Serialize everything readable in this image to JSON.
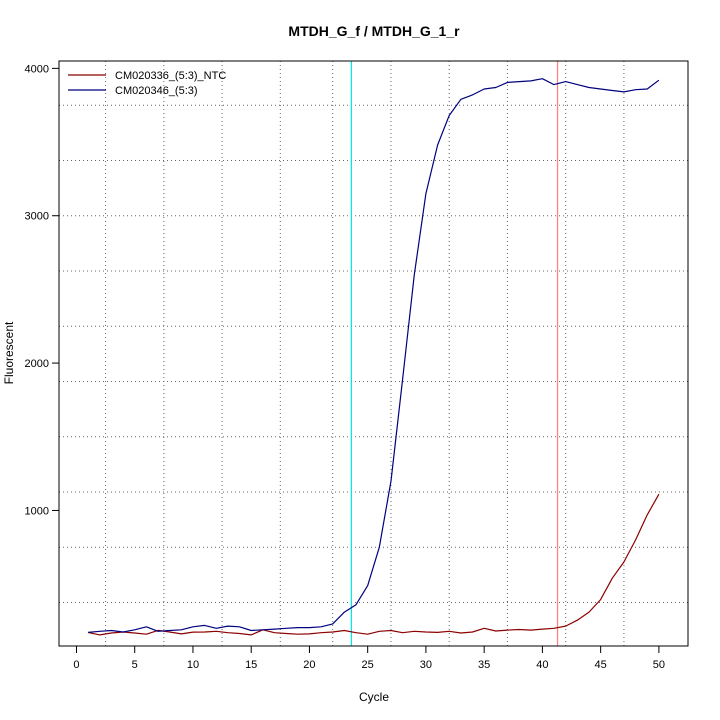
{
  "chart_data": {
    "type": "line",
    "title": "MTDH_G_f / MTDH_G_1_r",
    "xlabel": "Cycle",
    "ylabel": "Fluorescent",
    "xlim": [
      -1.5,
      52.5
    ],
    "ylim": [
      80,
      4050
    ],
    "x_ticks": [
      0,
      5,
      10,
      15,
      20,
      25,
      30,
      35,
      40,
      45,
      50
    ],
    "y_ticks": [
      1000,
      2000,
      3000,
      4000
    ],
    "x_grid": [
      2.5,
      7.5,
      12.5,
      17.5,
      22,
      27,
      32,
      37,
      42,
      47
    ],
    "y_grid": [
      375,
      750,
      1125,
      1500,
      1875,
      2250,
      2625,
      3000,
      3375,
      3750
    ],
    "legend_position": "top-left",
    "vertical_markers": [
      {
        "x": 23.6,
        "color": "#00e5e5"
      },
      {
        "x": 41.3,
        "color": "#ff7f7f"
      }
    ],
    "x": [
      1,
      2,
      3,
      4,
      5,
      6,
      7,
      8,
      9,
      10,
      11,
      12,
      13,
      14,
      15,
      16,
      17,
      18,
      19,
      20,
      21,
      22,
      23,
      24,
      25,
      26,
      27,
      28,
      29,
      30,
      31,
      32,
      33,
      34,
      35,
      36,
      37,
      38,
      39,
      40,
      41,
      42,
      43,
      44,
      45,
      46,
      47,
      48,
      49,
      50
    ],
    "series": [
      {
        "name": "CM020336_(5:3)_NTC",
        "color": "#8b0000",
        "values": [
          172,
          155,
          168,
          175,
          168,
          160,
          186,
          175,
          162,
          174,
          175,
          180,
          170,
          165,
          155,
          190,
          170,
          165,
          160,
          162,
          170,
          175,
          185,
          170,
          160,
          180,
          185,
          170,
          180,
          175,
          172,
          180,
          168,
          175,
          200,
          182,
          188,
          192,
          188,
          195,
          200,
          215,
          255,
          310,
          395,
          540,
          650,
          800,
          970,
          1110
        ]
      },
      {
        "name": "CM020346_(5:3)",
        "color": "#000080",
        "values": [
          172,
          180,
          185,
          175,
          190,
          210,
          180,
          185,
          190,
          210,
          220,
          200,
          215,
          210,
          185,
          190,
          195,
          200,
          205,
          205,
          210,
          230,
          310,
          360,
          490,
          750,
          1200,
          1890,
          2600,
          3150,
          3480,
          3680,
          3790,
          3820,
          3860,
          3870,
          3905,
          3910,
          3915,
          3930,
          3890,
          3910,
          3890,
          3870,
          3860,
          3850,
          3840,
          3855,
          3860,
          3920
        ]
      }
    ]
  }
}
